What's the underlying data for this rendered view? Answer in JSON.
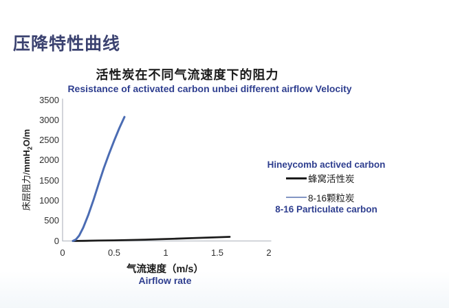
{
  "slide": {
    "heading": "压降特性曲线"
  },
  "chart_data": {
    "type": "line",
    "title": "活性炭在不同气流速度下的阻力",
    "subtitle": "Resistance of activated carbon unbei different airflow Velocity",
    "xlabel": "气流速度（m/s）",
    "xlabel_en": "Airflow rate",
    "ylabel": "床层阻力/mmH2O/m",
    "ylabel_parts": {
      "cjk": "床层阻力/",
      "pre": "mmH",
      "sub": "2",
      "post": "O/m"
    },
    "xlim": [
      0,
      2
    ],
    "ylim": [
      0,
      3500
    ],
    "x_tick_values": [
      0,
      0.5,
      1,
      1.5,
      2
    ],
    "x_tick_labels": [
      "0",
      "0.5",
      "1",
      "1.5",
      "2"
    ],
    "y_tick_values": [
      0,
      500,
      1000,
      1500,
      2000,
      2500,
      3000,
      3500
    ],
    "grid": false,
    "legend_position": "right",
    "legend": {
      "series1_en": "Hineycomb actived carbon",
      "series1_cjk": "蜂窝活性炭",
      "series2_cjk": "8-16颗粒炭",
      "series2_en": "8-16 Particulate carbon"
    },
    "series": [
      {
        "name": "蜂窝活性炭",
        "name_en": "Hineycomb actived carbon",
        "color": "#1c1c1c",
        "swatch_color": "#1c1c1c",
        "width": 2.8,
        "points": [
          [
            0.1,
            0
          ],
          [
            0.2,
            4
          ],
          [
            0.35,
            10
          ],
          [
            0.5,
            16
          ],
          [
            0.65,
            24
          ],
          [
            0.8,
            33
          ],
          [
            0.95,
            44
          ],
          [
            1.1,
            56
          ],
          [
            1.25,
            70
          ],
          [
            1.4,
            84
          ],
          [
            1.5,
            93
          ],
          [
            1.62,
            103
          ]
        ]
      },
      {
        "name": "8-16颗粒炭",
        "name_en": "8-16 Particulate carbon",
        "color": "#4b6cb3",
        "swatch_color": "#8295c3",
        "width": 3,
        "points": [
          [
            0.1,
            0
          ],
          [
            0.13,
            40
          ],
          [
            0.16,
            130
          ],
          [
            0.2,
            330
          ],
          [
            0.25,
            650
          ],
          [
            0.3,
            1020
          ],
          [
            0.35,
            1420
          ],
          [
            0.4,
            1810
          ],
          [
            0.45,
            2160
          ],
          [
            0.5,
            2490
          ],
          [
            0.55,
            2800
          ],
          [
            0.6,
            3080
          ]
        ]
      }
    ],
    "colors": {
      "heading_text": "#3b4270",
      "en_text": "#2e3e8f",
      "axis": "#b9bec6",
      "tick_text": "#2e2e2e",
      "title_text": "#1a1a1a"
    }
  }
}
